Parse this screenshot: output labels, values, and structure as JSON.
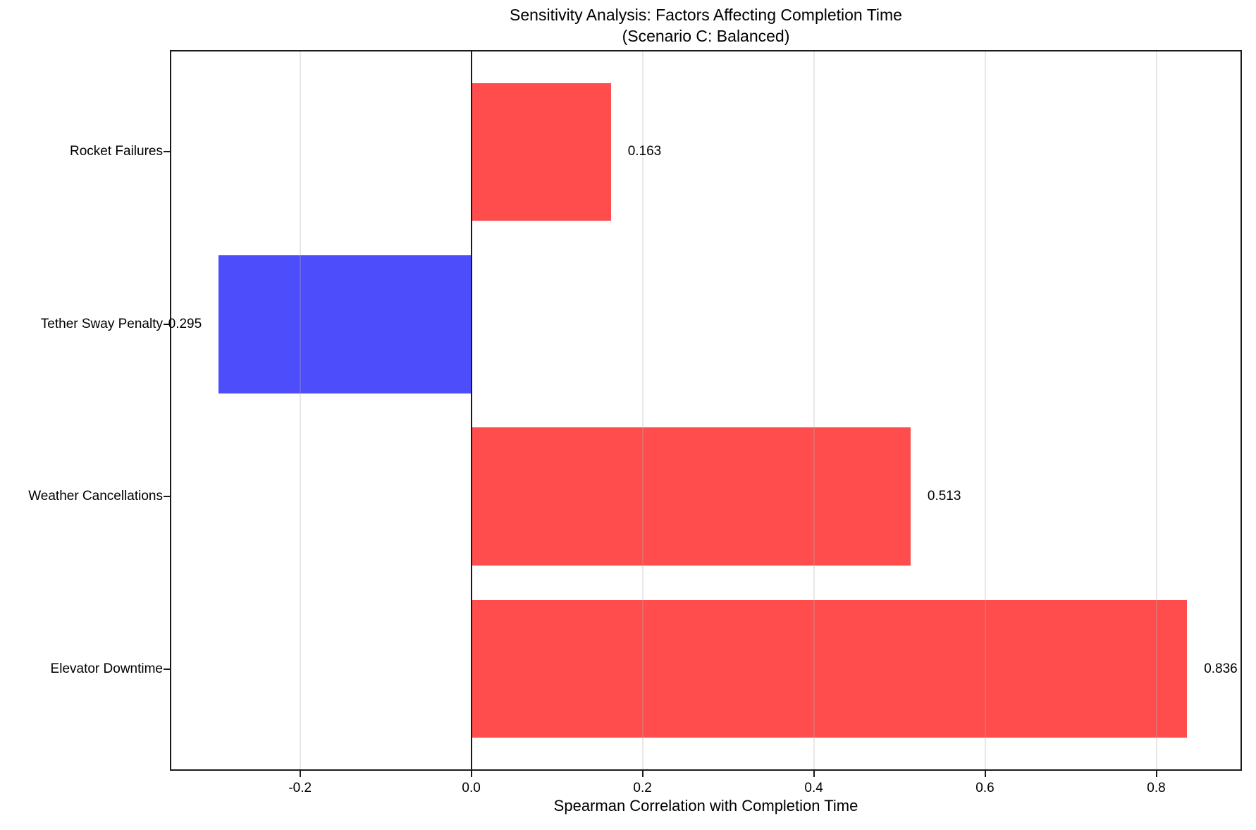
{
  "chart_data": {
    "type": "bar",
    "orientation": "horizontal",
    "title": "Sensitivity Analysis: Factors Affecting Completion Time",
    "subtitle": "(Scenario C: Balanced)",
    "xlabel": "Spearman Correlation with Completion Time",
    "ylabel": "",
    "categories": [
      "Rocket Failures",
      "Tether Sway Penalty",
      "Weather Cancellations",
      "Elevator Downtime"
    ],
    "values": [
      0.163,
      -0.295,
      0.513,
      0.836
    ],
    "value_labels": [
      "0.163",
      "-0.295",
      "0.513",
      "0.836"
    ],
    "xticks": [
      -0.2,
      0.0,
      0.2,
      0.4,
      0.6,
      0.8
    ],
    "xtick_labels": [
      "-0.2",
      "0.0",
      "0.2",
      "0.4",
      "0.6",
      "0.8"
    ],
    "xlim": [
      -0.352,
      0.9
    ],
    "grid": true,
    "legend_position": "none",
    "colors": {
      "positive": "#ff4d4d",
      "negative": "#4d4dfc",
      "gridline": "rgba(176,176,176,0.3)",
      "spine": "#1a1a1a",
      "zero_line": "#1a1a1a",
      "text": "#000000"
    }
  }
}
